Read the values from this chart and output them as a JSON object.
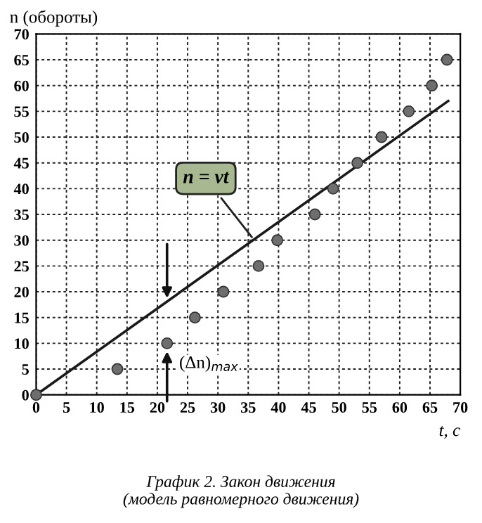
{
  "chart_data": {
    "type": "scatter",
    "title": "График 2. Закон движения\n(модель равномерного движения)",
    "xlabel": "t, c",
    "ylabel": "n (обороты)",
    "series": [
      {
        "color": "#6e6e6e",
        "marker": "circle",
        "x": [
          0,
          13.4,
          21.6,
          26.2,
          30.9,
          36.7,
          39.8,
          46,
          49,
          53,
          57,
          61.5,
          65.3,
          67.8
        ],
        "values": [
          0,
          5,
          10,
          15,
          20,
          25,
          30,
          35,
          40,
          45,
          50,
          55,
          60,
          65
        ]
      },
      {
        "type": "line",
        "color": "#1a1a1a",
        "marker": "none",
        "x": [
          0,
          68
        ],
        "values": [
          0,
          57
        ]
      }
    ],
    "annotations": [
      {
        "text": "n = vt",
        "x": 36,
        "y": 30
      },
      {
        "text": "(Δn)$_{max}$",
        "x": 21.6,
        "y": 10
      }
    ],
    "xlim": [
      0,
      70
    ],
    "ylim": [
      0,
      70
    ],
    "xticks": [
      0,
      5,
      10,
      15,
      20,
      25,
      30,
      35,
      40,
      45,
      50,
      55,
      60,
      65,
      70
    ],
    "yticks": [
      0,
      5,
      10,
      15,
      20,
      25,
      30,
      35,
      40,
      45,
      50,
      55,
      60,
      65,
      70
    ],
    "grid": true
  }
}
